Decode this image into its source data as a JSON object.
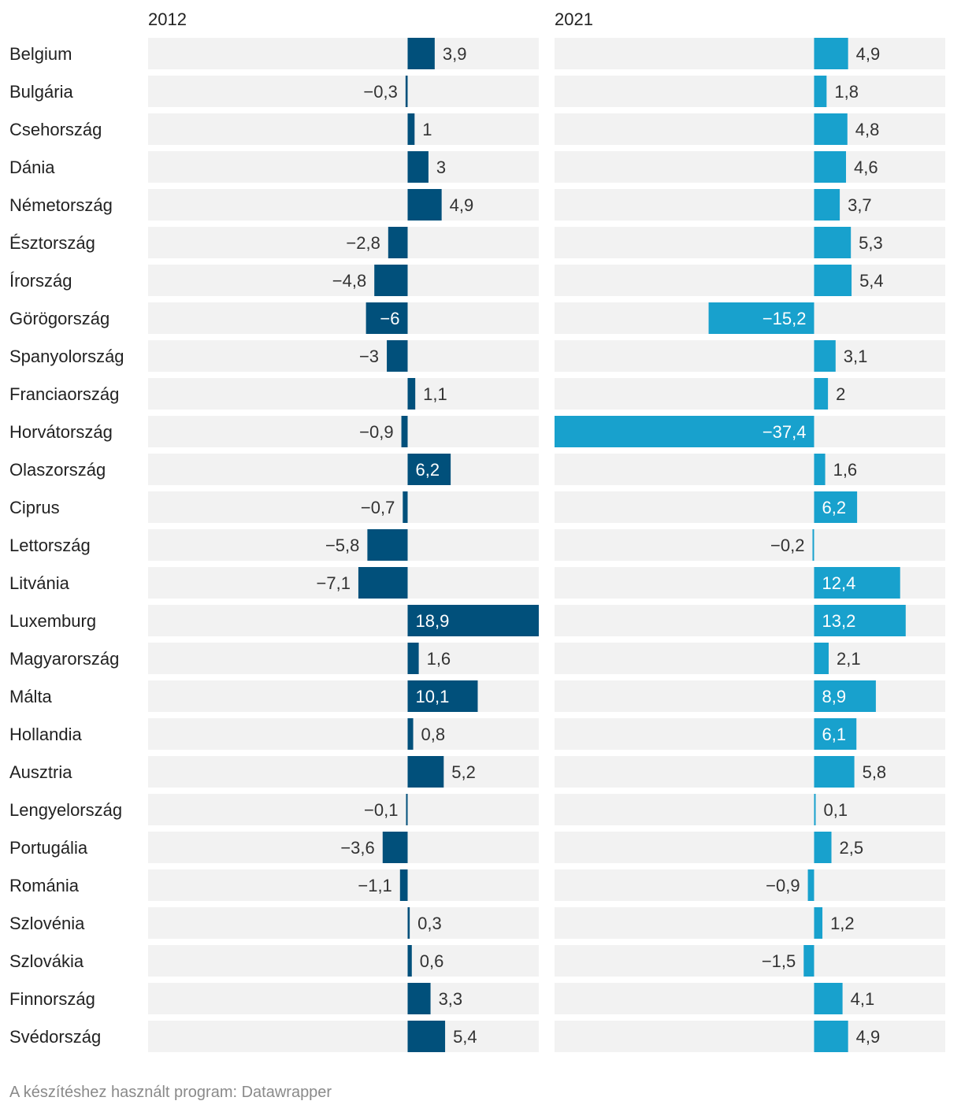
{
  "footer": "A készítéshez használt program: Datawrapper",
  "colors": {
    "series_2012": "#01507b",
    "series_2021": "#18a1cd",
    "row_bg": "#f2f2f2"
  },
  "chart_data": {
    "type": "bar",
    "orientation": "horizontal",
    "categories": [
      "Belgium",
      "Bulgária",
      "Csehország",
      "Dánia",
      "Németország",
      "Észtország",
      "Írország",
      "Görögország",
      "Spanyolország",
      "Franciaország",
      "Horvátország",
      "Olaszország",
      "Ciprus",
      "Lettország",
      "Litvánia",
      "Luxemburg",
      "Magyarország",
      "Málta",
      "Hollandia",
      "Ausztria",
      "Lengyelország",
      "Portugália",
      "Románia",
      "Szlovénia",
      "Szlovákia",
      "Finnország",
      "Svédország"
    ],
    "series": [
      {
        "name": "2012",
        "value_labels": [
          "3,9",
          "−0,3",
          "1",
          "3",
          "4,9",
          "−2,8",
          "−4,8",
          "−6",
          "−3",
          "1,1",
          "−0,9",
          "6,2",
          "−0,7",
          "−5,8",
          "−7,1",
          "18,9",
          "1,6",
          "10,1",
          "0,8",
          "5,2",
          "−0,1",
          "−3,6",
          "−1,1",
          "0,3",
          "0,6",
          "3,3",
          "5,4"
        ],
        "values": [
          3.9,
          -0.3,
          1,
          3,
          4.9,
          -2.8,
          -4.8,
          -6,
          -3,
          1.1,
          -0.9,
          6.2,
          -0.7,
          -5.8,
          -7.1,
          18.9,
          1.6,
          10.1,
          0.8,
          5.2,
          -0.1,
          -3.6,
          -1.1,
          0.3,
          0.6,
          3.3,
          5.4
        ],
        "xlim": [
          -37.4,
          18.9
        ]
      },
      {
        "name": "2021",
        "value_labels": [
          "4,9",
          "1,8",
          "4,8",
          "4,6",
          "3,7",
          "5,3",
          "5,4",
          "−15,2",
          "3,1",
          "2",
          "−37,4",
          "1,6",
          "6,2",
          "−0,2",
          "12,4",
          "13,2",
          "2,1",
          "8,9",
          "6,1",
          "5,8",
          "0,1",
          "2,5",
          "−0,9",
          "1,2",
          "−1,5",
          "4,1",
          "4,9"
        ],
        "values": [
          4.9,
          1.8,
          4.8,
          4.6,
          3.7,
          5.3,
          5.4,
          -15.2,
          3.1,
          2,
          -37.4,
          1.6,
          6.2,
          -0.2,
          12.4,
          13.2,
          2.1,
          8.9,
          6.1,
          5.8,
          0.1,
          2.5,
          -0.9,
          1.2,
          -1.5,
          4.1,
          4.9
        ],
        "xlim": [
          -37.4,
          18.9
        ]
      }
    ]
  }
}
